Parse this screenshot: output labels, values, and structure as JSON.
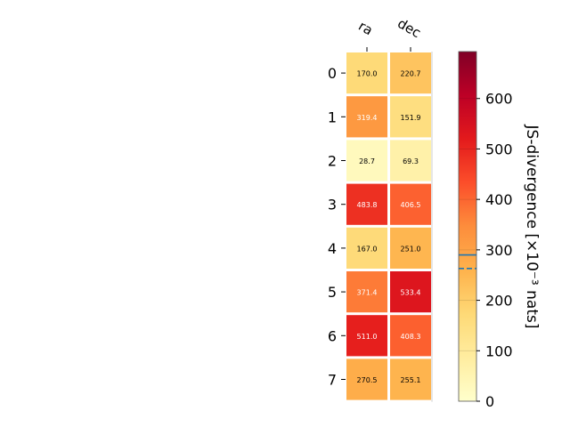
{
  "chart_data": {
    "type": "heatmap",
    "columns": [
      "ra",
      "dec"
    ],
    "rows": [
      "0",
      "1",
      "2",
      "3",
      "4",
      "5",
      "6",
      "7"
    ],
    "values": [
      [
        170.0,
        220.7
      ],
      [
        319.4,
        151.9
      ],
      [
        28.7,
        69.3
      ],
      [
        483.8,
        406.5
      ],
      [
        167.0,
        251.0
      ],
      [
        371.4,
        533.4
      ],
      [
        511.0,
        408.3
      ],
      [
        270.5,
        255.1
      ]
    ],
    "value_labels": [
      [
        "170.0",
        "220.7"
      ],
      [
        "319.4",
        "151.9"
      ],
      [
        "28.7",
        "69.3"
      ],
      [
        "483.8",
        "406.5"
      ],
      [
        "167.0",
        "251.0"
      ],
      [
        "371.4",
        "533.4"
      ],
      [
        "511.0",
        "408.3"
      ],
      [
        "270.5",
        "255.1"
      ]
    ],
    "colorbar": {
      "label": "JS-divergence [×10⁻³ nats]",
      "range": [
        0,
        693
      ],
      "ticks": [
        "0",
        "100",
        "200",
        "300",
        "400",
        "500",
        "600"
      ],
      "tick_values": [
        0,
        100,
        200,
        300,
        400,
        500,
        600
      ],
      "reference_lines": [
        {
          "value": 290,
          "style": "solid"
        },
        {
          "value": 263,
          "style": "dashed"
        }
      ],
      "colormap": "YlOrRd"
    },
    "colors": {
      "reference_line": "#1f77b4"
    }
  }
}
